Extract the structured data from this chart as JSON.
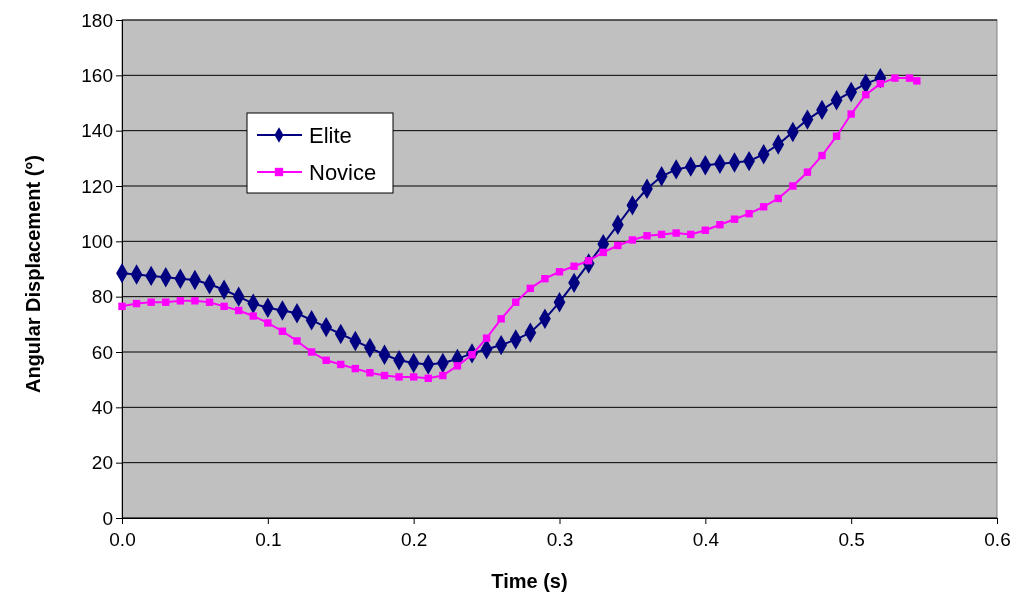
{
  "chart_data": {
    "type": "line",
    "xlabel": "Time (s)",
    "ylabel": "Angular Displacement (°)",
    "xlim": [
      0,
      0.6
    ],
    "xticks": [
      {
        "value": 0,
        "label": "0.0"
      },
      0.1,
      0.2,
      0.3,
      0.4,
      0.5,
      0.6
    ],
    "ylim": [
      0,
      180
    ],
    "yticks": [
      0,
      20,
      40,
      60,
      80,
      100,
      120,
      140,
      160,
      180
    ],
    "grid": "y",
    "legend": "top left",
    "line_style": "solid",
    "series": [
      {
        "name": "Elite",
        "color": "#000080",
        "marker": "diamond",
        "x": [
          0,
          0.01,
          0.02,
          0.03,
          0.04,
          0.05,
          0.06,
          0.07,
          0.08,
          0.09,
          0.1,
          0.11,
          0.12,
          0.13,
          0.14,
          0.15,
          0.16,
          0.17,
          0.18,
          0.19,
          0.2,
          0.21,
          0.22,
          0.23,
          0.24,
          0.25,
          0.26,
          0.27,
          0.28,
          0.29,
          0.3,
          0.31,
          0.32,
          0.33,
          0.34,
          0.35,
          0.36,
          0.37,
          0.38,
          0.39,
          0.4,
          0.41,
          0.42,
          0.43,
          0.44,
          0.45,
          0.46,
          0.47,
          0.48,
          0.49,
          0.5,
          0.51,
          0.52
        ],
        "values": [
          88.5,
          88,
          87.5,
          87,
          86.5,
          86,
          84.5,
          82.5,
          80,
          77.5,
          76,
          75,
          74,
          71.5,
          69,
          66.5,
          64,
          61.5,
          59,
          57,
          56,
          55.5,
          56,
          57.5,
          59.5,
          61,
          62.5,
          64.5,
          67,
          72,
          78,
          85,
          92,
          99,
          106,
          113,
          119,
          123.5,
          126,
          127,
          127.5,
          128,
          128.5,
          129,
          131.5,
          135,
          139.5,
          144,
          147.5,
          151,
          154,
          157,
          159
        ]
      },
      {
        "name": "Novice",
        "color": "#ff00ff",
        "marker": "square",
        "x": [
          0,
          0.01,
          0.02,
          0.03,
          0.04,
          0.05,
          0.06,
          0.07,
          0.08,
          0.09,
          0.1,
          0.11,
          0.12,
          0.13,
          0.14,
          0.15,
          0.16,
          0.17,
          0.18,
          0.19,
          0.2,
          0.21,
          0.22,
          0.23,
          0.24,
          0.25,
          0.26,
          0.27,
          0.28,
          0.29,
          0.3,
          0.31,
          0.32,
          0.33,
          0.34,
          0.35,
          0.36,
          0.37,
          0.38,
          0.39,
          0.4,
          0.41,
          0.42,
          0.43,
          0.44,
          0.45,
          0.46,
          0.47,
          0.48,
          0.49,
          0.5,
          0.51,
          0.52,
          0.53,
          0.54,
          0.545
        ],
        "values": [
          76.5,
          77.5,
          78,
          78,
          78.5,
          78.5,
          78,
          76.5,
          75,
          73,
          70.5,
          67.5,
          64,
          60,
          57,
          55.5,
          54,
          52.5,
          51.5,
          51,
          51,
          50.5,
          51.5,
          55,
          59,
          65,
          72,
          78,
          83,
          86.5,
          89,
          91,
          93,
          96,
          98.5,
          100.5,
          102,
          102.5,
          103,
          102.5,
          104,
          106,
          108,
          110,
          112.5,
          115.5,
          120,
          125,
          131,
          138,
          146,
          153,
          157,
          159,
          159,
          158
        ]
      }
    ]
  }
}
